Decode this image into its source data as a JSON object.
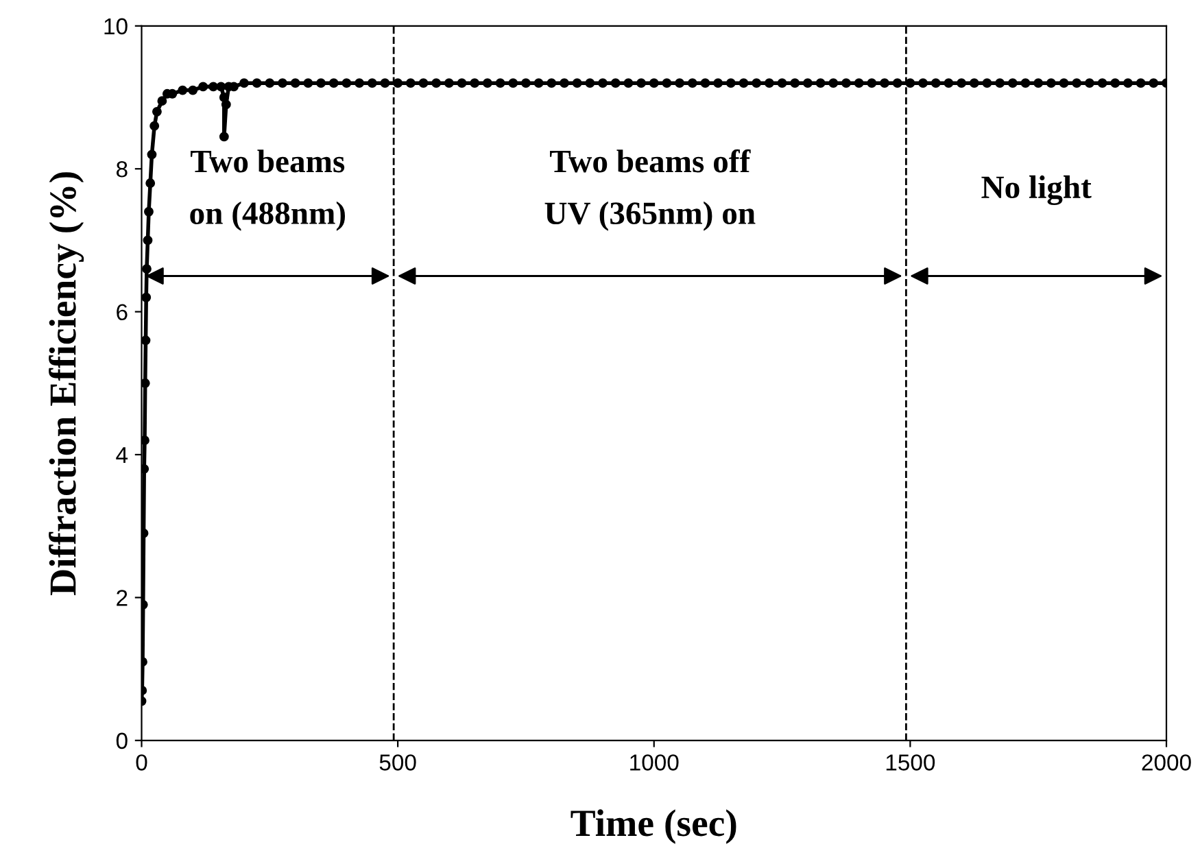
{
  "chart_data": {
    "type": "line",
    "xlabel": "Time (sec)",
    "ylabel": "Diffraction Efficiency (%)",
    "xlim": [
      0,
      2000
    ],
    "xticks": [
      0,
      500,
      1000,
      1500,
      2000
    ],
    "ylim": [
      0,
      10
    ],
    "yticks": [
      0,
      2,
      4,
      6,
      8,
      10
    ],
    "grid": false,
    "marker": "circle",
    "line_style": "solid",
    "ref_lines": [
      {
        "axis": "x",
        "value": 492,
        "line_style": "dashed",
        "color": "#000000"
      },
      {
        "axis": "x",
        "value": 1492,
        "line_style": "dashed",
        "color": "#000000"
      }
    ],
    "annotations": [
      "Two beams\non (488nm)",
      "Two beams off\nUV (365nm) on",
      "No light"
    ],
    "series": [
      {
        "color": "#000000",
        "x": [
          0,
          1,
          2,
          3,
          4,
          5,
          6,
          7,
          8,
          9,
          10,
          12,
          14,
          17,
          20,
          25,
          30,
          40,
          50,
          60,
          80,
          100,
          120,
          140,
          155,
          161,
          161,
          165,
          170,
          180,
          200,
          225,
          250,
          275,
          300,
          325,
          350,
          375,
          400,
          425,
          450,
          475,
          500,
          525,
          550,
          575,
          600,
          625,
          650,
          675,
          700,
          725,
          750,
          775,
          800,
          825,
          850,
          875,
          900,
          925,
          950,
          975,
          1000,
          1025,
          1050,
          1075,
          1100,
          1125,
          1150,
          1175,
          1200,
          1225,
          1250,
          1275,
          1300,
          1325,
          1350,
          1375,
          1400,
          1425,
          1450,
          1475,
          1500,
          1525,
          1550,
          1575,
          1600,
          1625,
          1650,
          1675,
          1700,
          1725,
          1750,
          1775,
          1800,
          1825,
          1850,
          1875,
          1900,
          1925,
          1950,
          1975,
          2000
        ],
        "values": [
          0.55,
          0.7,
          1.1,
          1.9,
          2.9,
          3.8,
          4.2,
          5.0,
          5.6,
          6.2,
          6.6,
          7.0,
          7.4,
          7.8,
          8.2,
          8.6,
          8.8,
          8.95,
          9.05,
          9.05,
          9.1,
          9.1,
          9.15,
          9.15,
          9.15,
          9.0,
          8.45,
          8.9,
          9.15,
          9.15,
          9.2,
          9.2,
          9.2,
          9.2,
          9.2,
          9.2,
          9.2,
          9.2,
          9.2,
          9.2,
          9.2,
          9.2,
          9.2,
          9.2,
          9.2,
          9.2,
          9.2,
          9.2,
          9.2,
          9.2,
          9.2,
          9.2,
          9.2,
          9.2,
          9.2,
          9.2,
          9.2,
          9.2,
          9.2,
          9.2,
          9.2,
          9.2,
          9.2,
          9.2,
          9.2,
          9.2,
          9.2,
          9.2,
          9.2,
          9.2,
          9.2,
          9.2,
          9.2,
          9.2,
          9.2,
          9.2,
          9.2,
          9.2,
          9.2,
          9.2,
          9.2,
          9.2,
          9.2,
          9.2,
          9.2,
          9.2,
          9.2,
          9.2,
          9.2,
          9.2,
          9.2,
          9.2,
          9.2,
          9.2,
          9.2,
          9.2,
          9.2,
          9.2,
          9.2,
          9.2,
          9.2,
          9.2,
          9.2
        ]
      }
    ]
  }
}
